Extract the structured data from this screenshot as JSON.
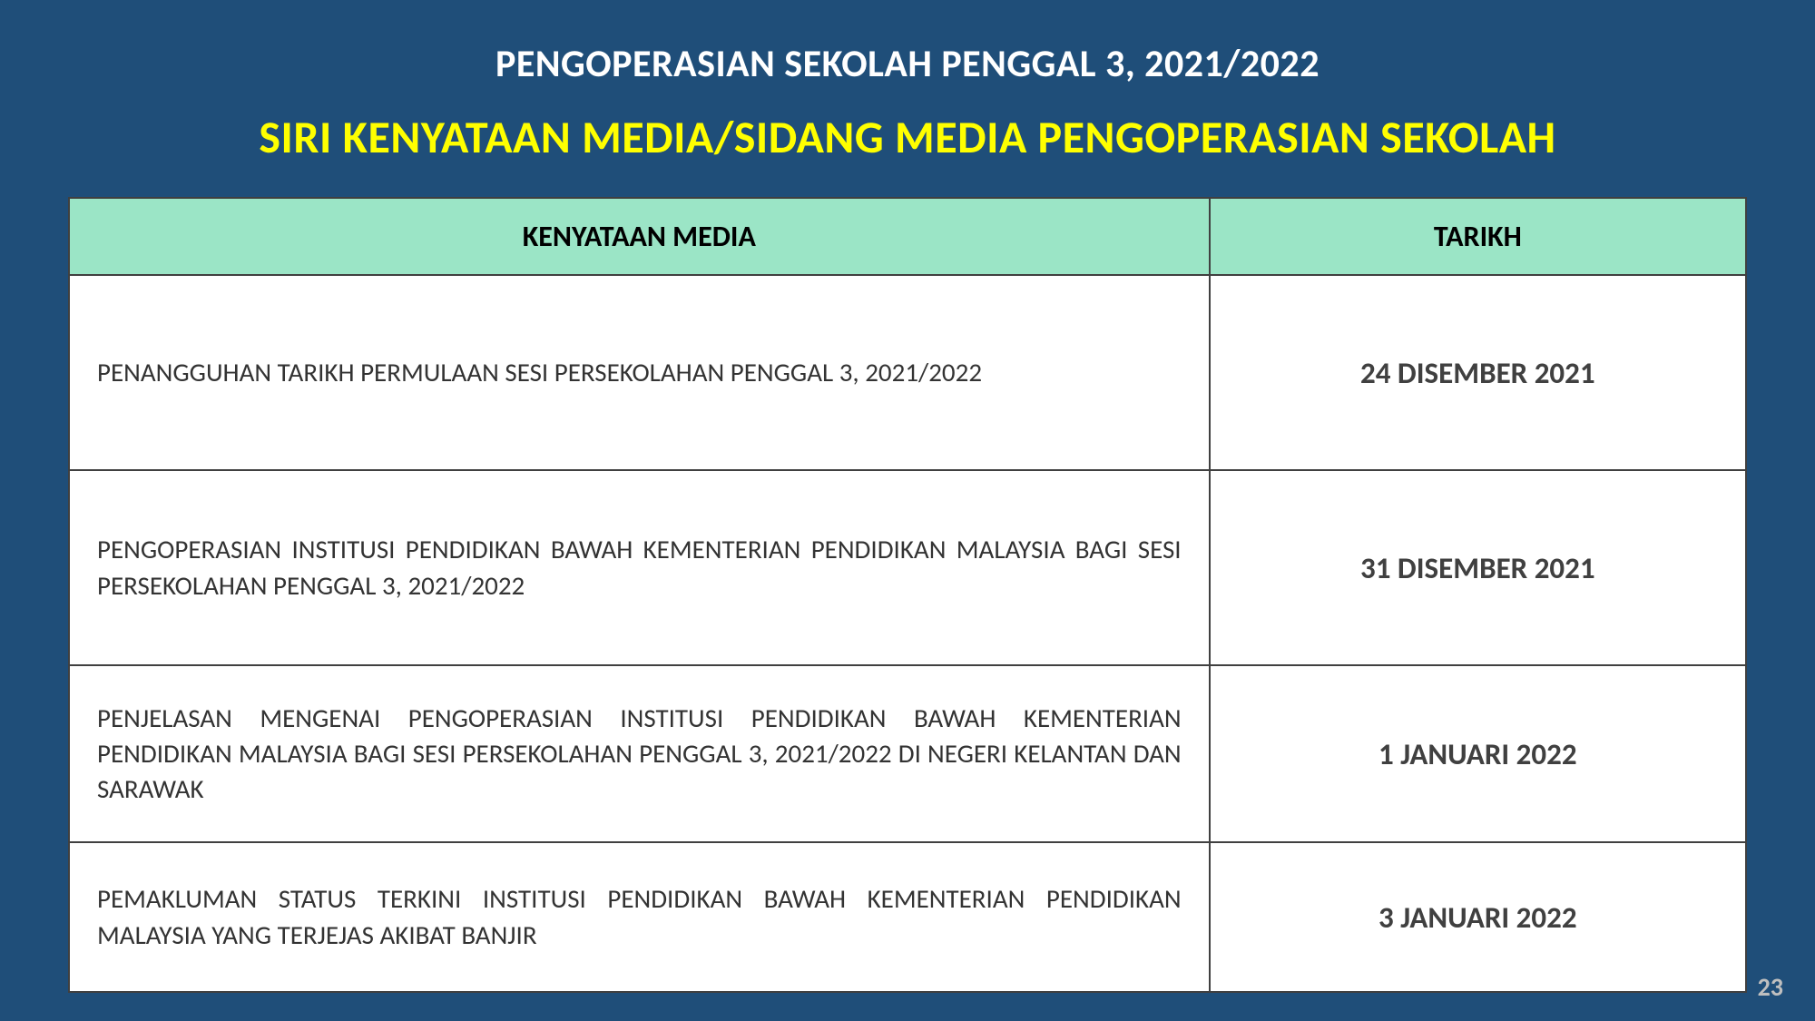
{
  "header": {
    "title_line1": "PENGOPERASIAN SEKOLAH PENGGAL 3, 2021/2022",
    "title_line2": "SIRI KENYATAAN MEDIA/SIDANG MEDIA PENGOPERASIAN SEKOLAH"
  },
  "table": {
    "columns": [
      "KENYATAAN MEDIA",
      "TARIKH"
    ],
    "column_widths_pct": [
      68,
      32
    ],
    "header_bg_color": "#9be5c6",
    "header_text_color": "#000000",
    "header_font_size_pt": 24,
    "cell_bg_color": "#ffffff",
    "border_color": "#404040",
    "rows": [
      {
        "media": "PENANGGUHAN TARIKH PERMULAAN SESI PERSEKOLAHAN PENGGAL 3, 2021/2022",
        "date": "24 DISEMBER 2021"
      },
      {
        "media": "PENGOPERASIAN INSTITUSI PENDIDIKAN BAWAH KEMENTERIAN PENDIDIKAN MALAYSIA BAGI SESI PERSEKOLAHAN PENGGAL 3, 2021/2022",
        "date": "31 DISEMBER 2021"
      },
      {
        "media": "PENJELASAN MENGENAI PENGOPERASIAN INSTITUSI PENDIDIKAN BAWAH KEMENTERIAN PENDIDIKAN MALAYSIA BAGI SESI PERSEKOLAHAN PENGGAL 3, 2021/2022 DI NEGERI KELANTAN DAN SARAWAK",
        "date": "1 JANUARI 2022"
      },
      {
        "media": "PEMAKLUMAN STATUS TERKINI INSTITUSI PENDIDIKAN BAWAH KEMENTERIAN PENDIDIKAN MALAYSIA YANG TERJEJAS AKIBAT BANJIR",
        "date": "3 JANUARI 2022"
      }
    ],
    "media_text_color": "#333333",
    "media_font_size_pt": 22,
    "date_text_color": "#404040",
    "date_font_size_pt": 25,
    "date_font_weight": "bold"
  },
  "page_number": "23",
  "styling": {
    "background_color": "#1f4e79",
    "title1_color": "#ffffff",
    "title1_font_size_pt": 32,
    "title2_color": "#ffff00",
    "title2_font_size_pt": 38,
    "page_number_color": "#bfbfbf",
    "font_family": "Calibri, Arial, sans-serif"
  }
}
